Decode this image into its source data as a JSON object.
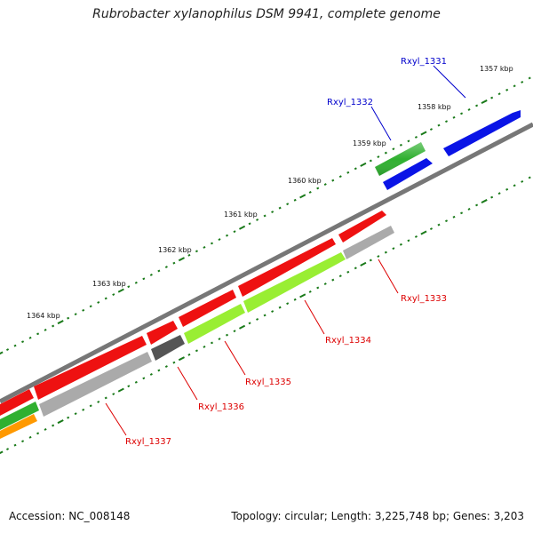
{
  "title": "Rubrobacter xylanophilus DSM 9941, complete genome",
  "accession": "Accession: NC_008148",
  "summary": "Topology: circular; Length: 3,225,748 bp; Genes: 3,203",
  "scale_labels": [
    "1357 kbp",
    "1358 kbp",
    "1359 kbp",
    "1360 kbp",
    "1361 kbp",
    "1362 kbp",
    "1363 kbp",
    "1364 kbp"
  ],
  "gene_labels": [
    {
      "name": "Rxyl_1331",
      "color": "#0000cc"
    },
    {
      "name": "Rxyl_1332",
      "color": "#0000cc"
    },
    {
      "name": "Rxyl_1333",
      "color": "#dd0000"
    },
    {
      "name": "Rxyl_1334",
      "color": "#dd0000"
    },
    {
      "name": "Rxyl_1335",
      "color": "#dd0000"
    },
    {
      "name": "Rxyl_1336",
      "color": "#dd0000"
    },
    {
      "name": "Rxyl_1337",
      "color": "#dd0000"
    }
  ],
  "colors": {
    "backbone": "#777777",
    "ticks": "#1a7a1a",
    "red": "#ee1111",
    "blue": "#0a14e6",
    "green": "#30b030",
    "lime": "#99ee33",
    "gray": "#aaaaaa",
    "darkgray": "#555555",
    "orange": "#ff9900"
  }
}
